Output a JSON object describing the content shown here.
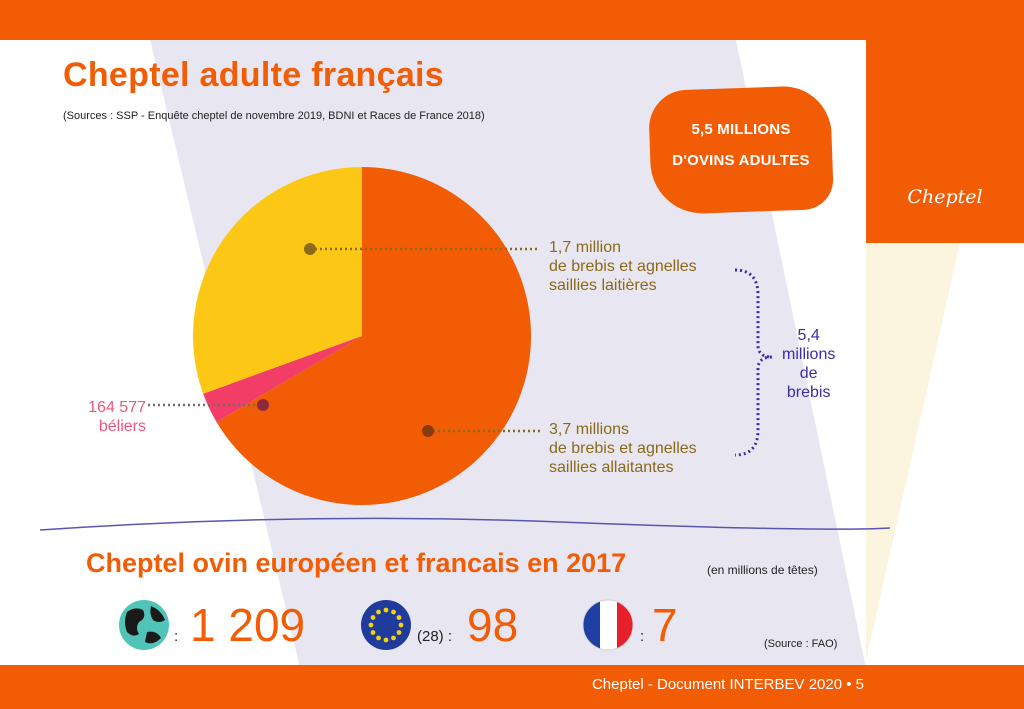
{
  "page": {
    "title": "Cheptel adulte français",
    "sources": "(Sources : SSP - Enquête cheptel de novembre 2019, BDNI et Races de France 2018)",
    "badge_line1": "5,5 MILLIONS",
    "badge_line2": "D'OVINS ADULTES",
    "brand": "Cheptel",
    "footer": "Cheptel - Document INTERBEV 2020 • 5"
  },
  "labels": {
    "dairy": [
      "1,7 million",
      "de brebis et agnelles",
      "saillies laitières"
    ],
    "meat": [
      "3,7 millions",
      "de brebis et agnelles",
      "saillies allaitantes"
    ],
    "rams": [
      "164 577",
      "béliers"
    ],
    "total": [
      "5,4",
      "millions",
      "de",
      "brebis"
    ]
  },
  "chart_data": {
    "type": "pie",
    "unit": "têtes",
    "slices": [
      {
        "label": "brebis et agnelles saillies allaitantes",
        "value": 3700000,
        "color": "#f25c05"
      },
      {
        "label": "béliers",
        "value": 164577,
        "color": "#f23d67"
      },
      {
        "label": "brebis et agnelles saillies laitières",
        "value": 1700000,
        "color": "#fdc815"
      }
    ]
  },
  "section2": {
    "title": "Cheptel ovin européen et francais en 2017",
    "note": "(en millions de têtes)",
    "world_value": "1 209",
    "eu_prefix": "(28) :",
    "eu_value": "98",
    "fr_value": "7",
    "source": "(Source : FAO)",
    "colon": ":"
  },
  "colors": {
    "accent": "#f25c05",
    "lavender": "#e5e3f0",
    "bracket": "#3a2ea6",
    "eu_blue": "#1f3b9c",
    "eu_star": "#f3d20f",
    "fr_blue": "#1f3fa5",
    "fr_red": "#e8202b"
  }
}
